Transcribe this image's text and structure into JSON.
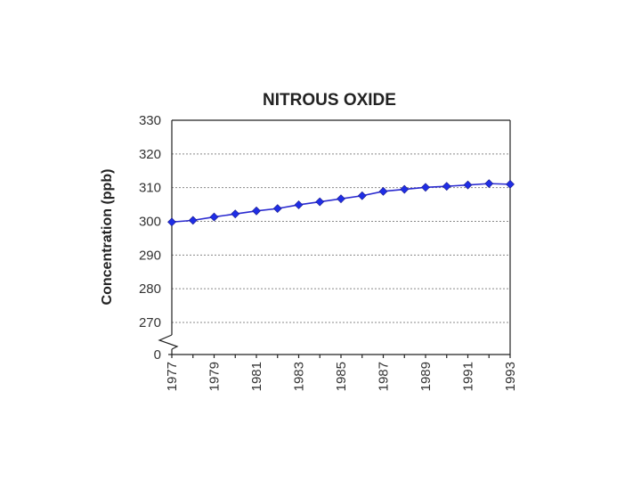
{
  "chart_data": {
    "type": "line",
    "title": "NITROUS OXIDE",
    "xlabel": "",
    "ylabel": "Concentration (ppb)",
    "y_tick_labels": [
      "0",
      "270",
      "280",
      "290",
      "300",
      "310",
      "320",
      "330"
    ],
    "x_tick_labels": [
      "1977",
      "1979",
      "1981",
      "1983",
      "1985",
      "1987",
      "1989",
      "1991",
      "1993"
    ],
    "y_axis_break": true,
    "ylim": [
      270,
      330
    ],
    "grid": true,
    "legend": "none",
    "colors": {
      "series": "#2a2ad0",
      "marker": "#1f2ee6"
    },
    "x": [
      1977,
      1978,
      1979,
      1980,
      1981,
      1982,
      1983,
      1984,
      1985,
      1986,
      1987,
      1988,
      1989,
      1990,
      1991,
      1992,
      1993
    ],
    "series": [
      {
        "values": [
          299.8,
          300.3,
          301.3,
          302.2,
          303.1,
          303.8,
          304.9,
          305.8,
          306.7,
          307.6,
          308.9,
          309.5,
          310.1,
          310.4,
          310.8,
          311.2,
          311.0
        ]
      }
    ]
  }
}
